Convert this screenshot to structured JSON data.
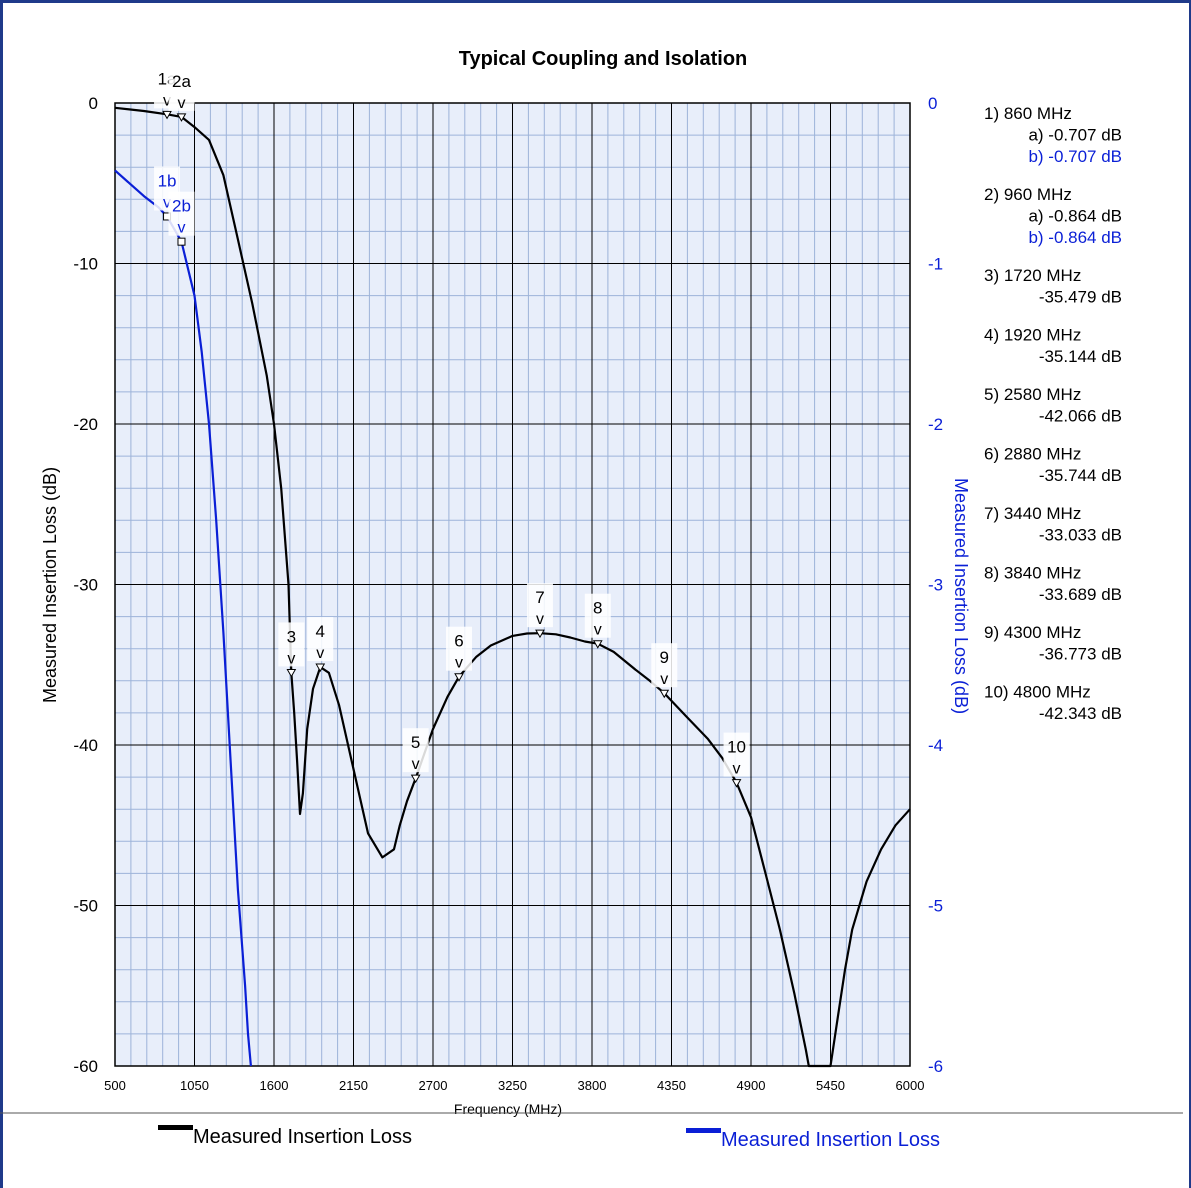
{
  "chart_data": {
    "type": "line",
    "title": "Typical Coupling and Isolation",
    "xlabel": "Frequency (MHz)",
    "ylabel_left": "Measured Insertion Loss (dB)",
    "ylabel_right": "Measured Insertion Loss (dB)",
    "xlim": [
      500,
      6000
    ],
    "ylim_left": [
      -60,
      0
    ],
    "ylim_right": [
      -6,
      0
    ],
    "x_ticks": [
      "500",
      "1050",
      "1600",
      "2150",
      "2700",
      "3250",
      "3800",
      "4350",
      "4900",
      "5450",
      "6000"
    ],
    "y_ticks_left": [
      "0",
      "-10",
      "-20",
      "-30",
      "-40",
      "-50",
      "-60"
    ],
    "y_ticks_right": [
      "0",
      "-1",
      "-2",
      "-3",
      "-4",
      "-5",
      "-6"
    ],
    "grid": true,
    "legend_position": "bottom",
    "colors": {
      "series_a": "#000000",
      "series_b": "#0a1fd6",
      "grid_major": "#000000",
      "grid_minor": "#9db3d9",
      "plot_bg": "#e8eefa"
    },
    "series": [
      {
        "name": "Measured Insertion Loss",
        "axis": "left",
        "color": "#000000",
        "x": [
          500,
          700,
          860,
          960,
          1050,
          1150,
          1250,
          1350,
          1450,
          1550,
          1600,
          1650,
          1700,
          1720,
          1740,
          1760,
          1780,
          1800,
          1830,
          1870,
          1920,
          1980,
          2050,
          2150,
          2250,
          2350,
          2430,
          2470,
          2520,
          2580,
          2700,
          2800,
          2880,
          3000,
          3100,
          3250,
          3350,
          3440,
          3550,
          3650,
          3750,
          3840,
          3950,
          4100,
          4200,
          4300,
          4450,
          4600,
          4700,
          4800,
          4900,
          5000,
          5100,
          5200,
          5280,
          5300,
          5330,
          5360,
          5390,
          5420,
          5450,
          5500,
          5550,
          5600,
          5700,
          5800,
          5900,
          6000
        ],
        "y": [
          -0.3,
          -0.5,
          -0.707,
          -0.864,
          -1.5,
          -2.3,
          -4.5,
          -8.5,
          -12.5,
          -17,
          -20,
          -24,
          -30,
          -35.479,
          -38,
          -41,
          -44.3,
          -43,
          -39,
          -36.5,
          -35.144,
          -35.5,
          -37.5,
          -41.5,
          -45.5,
          -47,
          -46.5,
          -45,
          -43.5,
          -42.066,
          -39,
          -37,
          -35.744,
          -34.5,
          -33.8,
          -33.2,
          -33.05,
          -33.033,
          -33.1,
          -33.3,
          -33.55,
          -33.689,
          -34.2,
          -35.3,
          -36,
          -36.773,
          -38.2,
          -39.6,
          -40.8,
          -42.343,
          -44.5,
          -48,
          -51.5,
          -55.5,
          -59,
          -60,
          -60,
          -60,
          -60,
          -60,
          -60,
          -57,
          -54,
          -51.5,
          -48.5,
          -46.5,
          -45,
          -44
        ]
      },
      {
        "name": "Measured Insertion Loss",
        "axis": "right",
        "color": "#0a1fd6",
        "x": [
          500,
          600,
          700,
          800,
          860,
          960,
          1050,
          1100,
          1150,
          1200,
          1250,
          1300,
          1350,
          1400,
          1420,
          1440
        ],
        "y": [
          -0.42,
          -0.5,
          -0.58,
          -0.65,
          -0.707,
          -0.864,
          -1.2,
          -1.55,
          -2.0,
          -2.6,
          -3.3,
          -4.1,
          -4.9,
          -5.5,
          -5.8,
          -6.0
        ]
      }
    ],
    "markers": [
      {
        "label": "1a",
        "series": 0,
        "x": 860,
        "y": -0.707
      },
      {
        "label": "2a",
        "series": 0,
        "x": 960,
        "y": -0.864
      },
      {
        "label": "1b",
        "series": 1,
        "x": 860,
        "y": -0.707
      },
      {
        "label": "2b",
        "series": 1,
        "x": 960,
        "y": -0.864
      },
      {
        "label": "3",
        "series": 0,
        "x": 1720,
        "y": -35.479
      },
      {
        "label": "4",
        "series": 0,
        "x": 1920,
        "y": -35.144
      },
      {
        "label": "5",
        "series": 0,
        "x": 2580,
        "y": -42.066
      },
      {
        "label": "6",
        "series": 0,
        "x": 2880,
        "y": -35.744
      },
      {
        "label": "7",
        "series": 0,
        "x": 3440,
        "y": -33.033
      },
      {
        "label": "8",
        "series": 0,
        "x": 3840,
        "y": -33.689
      },
      {
        "label": "9",
        "series": 0,
        "x": 4300,
        "y": -36.773
      },
      {
        "label": "10",
        "series": 0,
        "x": 4800,
        "y": -42.343
      }
    ],
    "marker_arrow": "v",
    "marker_readout": [
      {
        "freq": "1) 860 MHz",
        "values": [
          {
            "text": "a) -0.707 dB",
            "series": 0
          },
          {
            "text": "b) -0.707 dB",
            "series": 1
          }
        ]
      },
      {
        "freq": "2) 960 MHz",
        "values": [
          {
            "text": "a) -0.864 dB",
            "series": 0
          },
          {
            "text": "b) -0.864 dB",
            "series": 1
          }
        ]
      },
      {
        "freq": "3) 1720 MHz",
        "values": [
          {
            "text": "-35.479 dB",
            "series": 0
          }
        ]
      },
      {
        "freq": "4) 1920 MHz",
        "values": [
          {
            "text": "-35.144 dB",
            "series": 0
          }
        ]
      },
      {
        "freq": "5) 2580 MHz",
        "values": [
          {
            "text": "-42.066 dB",
            "series": 0
          }
        ]
      },
      {
        "freq": "6) 2880 MHz",
        "values": [
          {
            "text": "-35.744 dB",
            "series": 0
          }
        ]
      },
      {
        "freq": "7) 3440 MHz",
        "values": [
          {
            "text": "-33.033 dB",
            "series": 0
          }
        ]
      },
      {
        "freq": "8) 3840 MHz",
        "values": [
          {
            "text": "-33.689 dB",
            "series": 0
          }
        ]
      },
      {
        "freq": "9) 4300 MHz",
        "values": [
          {
            "text": "-36.773 dB",
            "series": 0
          }
        ]
      },
      {
        "freq": "10) 4800 MHz",
        "values": [
          {
            "text": "-42.343 dB",
            "series": 0
          }
        ]
      }
    ],
    "legend": [
      {
        "label": "Measured Insertion Loss",
        "series": 0
      },
      {
        "label": "Measured Insertion Loss",
        "series": 1
      }
    ]
  }
}
